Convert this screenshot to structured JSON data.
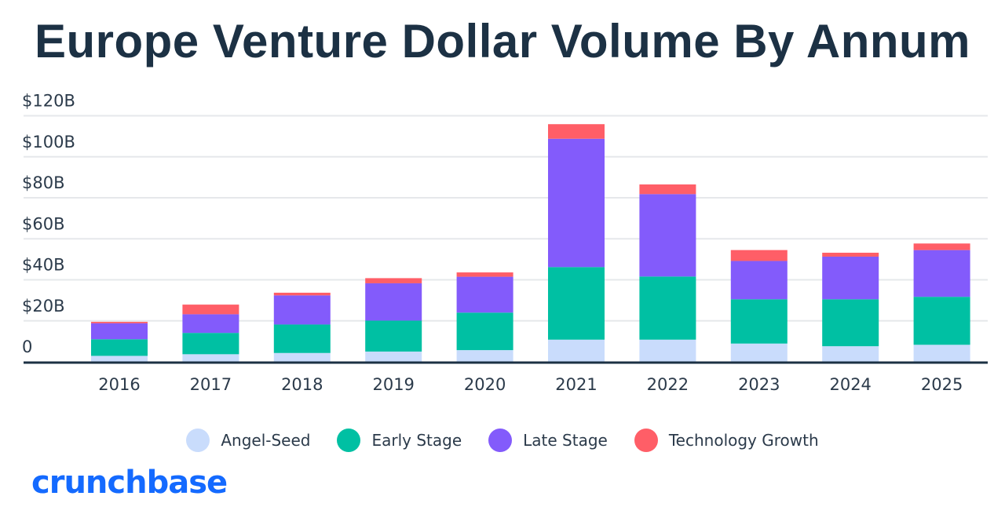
{
  "title": "Europe Venture Dollar Volume By Annum",
  "logo": "crunchbase",
  "chart_data": {
    "type": "bar",
    "stacked": true,
    "title": "Europe Venture Dollar Volume By Annum",
    "xlabel": "",
    "ylabel": "",
    "ylim": [
      0,
      120
    ],
    "yticks": [
      0,
      20,
      40,
      60,
      80,
      100,
      120
    ],
    "ytick_labels": [
      "0",
      "$20B",
      "$40B",
      "$60B",
      "$80B",
      "$100B",
      "$120B"
    ],
    "grid": true,
    "legend_position": "bottom",
    "categories": [
      "2016",
      "2017",
      "2018",
      "2019",
      "2020",
      "2021",
      "2022",
      "2023",
      "2024",
      "2025"
    ],
    "series": [
      {
        "name": "Angel-Seed",
        "color": "#c9dcfc",
        "values": [
          2.9,
          3.7,
          4.3,
          5.0,
          5.7,
          10.8,
          10.8,
          8.9,
          7.6,
          8.3
        ]
      },
      {
        "name": "Early Stage",
        "color": "#00c0a3",
        "values": [
          8.1,
          10.4,
          13.9,
          15.1,
          18.3,
          35.4,
          30.8,
          21.6,
          22.9,
          23.4
        ]
      },
      {
        "name": "Late Stage",
        "color": "#835bfb",
        "values": [
          7.8,
          9.1,
          14.2,
          18.2,
          17.5,
          62.6,
          40.2,
          18.7,
          20.8,
          22.8
        ]
      },
      {
        "name": "Technology Growth",
        "color": "#ff5e67",
        "values": [
          0.7,
          4.7,
          1.3,
          2.5,
          2.1,
          7.1,
          4.7,
          5.3,
          1.9,
          3.2
        ]
      }
    ]
  }
}
